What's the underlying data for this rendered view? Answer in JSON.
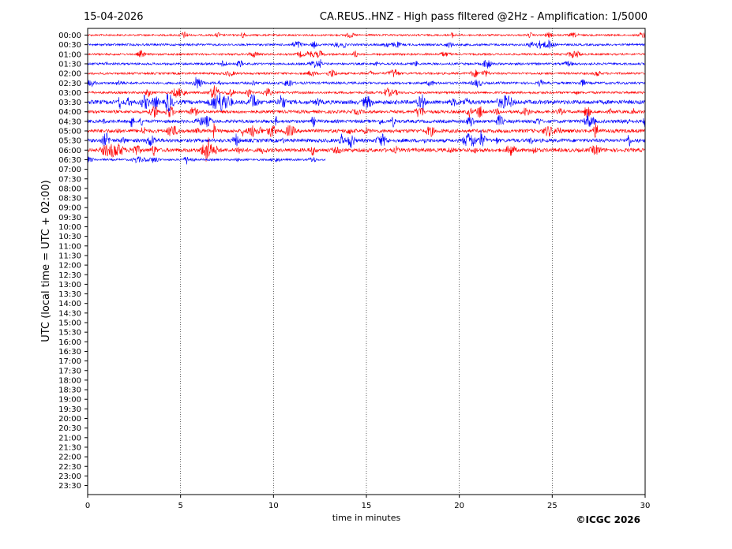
{
  "header": {
    "date": "15-04-2026",
    "title": "CA.REUS..HNZ - High pass filtered @2Hz - Amplification: 1/5000"
  },
  "copyright": "©ICGC 2026",
  "colors": {
    "odd_trace": "#ff0000",
    "even_trace": "#0000ff",
    "grid": "#000000",
    "background": "#ffffff"
  },
  "chart_data": {
    "type": "line",
    "title": "CA.REUS..HNZ - High pass filtered @2Hz - Amplification: 1/5000",
    "xlabel": "time in minutes",
    "ylabel": "UTC (local time = UTC + 02:00)",
    "xlim": [
      0,
      30
    ],
    "x_ticks": [
      "0",
      "5",
      "10",
      "15",
      "20",
      "25",
      "30"
    ],
    "grid": "vertical dotted lines at 5-minute intervals",
    "row_labels": [
      "00:00",
      "00:30",
      "01:00",
      "01:30",
      "02:00",
      "02:30",
      "03:00",
      "03:30",
      "04:00",
      "04:30",
      "05:00",
      "05:30",
      "06:00",
      "06:30",
      "07:00",
      "07:30",
      "08:00",
      "08:30",
      "09:00",
      "09:30",
      "10:00",
      "10:30",
      "11:00",
      "11:30",
      "12:00",
      "12:30",
      "13:00",
      "13:30",
      "14:00",
      "14:30",
      "15:00",
      "15:30",
      "16:00",
      "16:30",
      "17:00",
      "17:30",
      "18:00",
      "18:30",
      "19:00",
      "19:30",
      "20:00",
      "20:30",
      "21:00",
      "21:30",
      "22:00",
      "22:30",
      "23:00",
      "23:30"
    ],
    "series": [
      {
        "row": "00:00",
        "color": "red",
        "x_start": 0,
        "x_end": 30,
        "activity": 0.25
      },
      {
        "row": "00:30",
        "color": "blue",
        "x_start": 0,
        "x_end": 30,
        "activity": 0.35
      },
      {
        "row": "01:00",
        "color": "red",
        "x_start": 0,
        "x_end": 30,
        "activity": 0.3
      },
      {
        "row": "01:30",
        "color": "blue",
        "x_start": 0,
        "x_end": 30,
        "activity": 0.35
      },
      {
        "row": "02:00",
        "color": "red",
        "x_start": 0,
        "x_end": 30,
        "activity": 0.35
      },
      {
        "row": "02:30",
        "color": "blue",
        "x_start": 0,
        "x_end": 30,
        "activity": 0.4
      },
      {
        "row": "03:00",
        "color": "red",
        "x_start": 0,
        "x_end": 30,
        "activity": 0.4
      },
      {
        "row": "03:30",
        "color": "blue",
        "x_start": 0,
        "x_end": 30,
        "activity": 0.9
      },
      {
        "row": "04:00",
        "color": "red",
        "x_start": 0,
        "x_end": 30,
        "activity": 0.6
      },
      {
        "row": "04:30",
        "color": "blue",
        "x_start": 0,
        "x_end": 30,
        "activity": 0.65
      },
      {
        "row": "05:00",
        "color": "red",
        "x_start": 0,
        "x_end": 30,
        "activity": 0.75
      },
      {
        "row": "05:30",
        "color": "blue",
        "x_start": 0,
        "x_end": 30,
        "activity": 0.75
      },
      {
        "row": "06:00",
        "color": "red",
        "x_start": 0,
        "x_end": 30,
        "activity": 0.8
      },
      {
        "row": "06:30",
        "color": "blue",
        "x_start": 0,
        "x_end": 12.8,
        "activity": 0.3
      }
    ]
  }
}
